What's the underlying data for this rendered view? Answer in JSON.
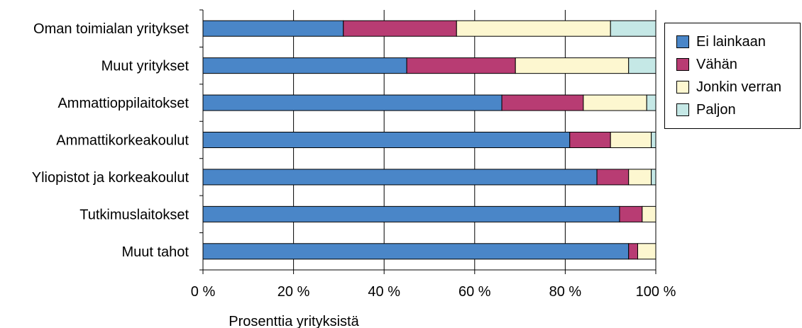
{
  "chart_data": {
    "type": "bar",
    "orientation": "horizontal",
    "stacked": true,
    "title": "",
    "xlabel": "Prosenttia yrityksistä",
    "ylabel": "",
    "xlim": [
      0,
      100
    ],
    "x_ticks": [
      "0 %",
      "20 %",
      "40 %",
      "60 %",
      "80 %",
      "100 %"
    ],
    "grid": "vertical",
    "legend_position": "right-top",
    "categories": [
      "Oman toimialan yritykset",
      "Muut yritykset",
      "Ammattioppilaitokset",
      "Ammattikorkeakoulut",
      "Yliopistot ja korkeakoulut",
      "Tutkimuslaitokset",
      "Muut tahot"
    ],
    "series": [
      {
        "name": "Ei lainkaan",
        "color": "#4a86c8",
        "values": [
          31,
          45,
          66,
          81,
          87,
          92,
          94
        ]
      },
      {
        "name": "Vähän",
        "color": "#b83c73",
        "values": [
          25,
          24,
          18,
          9,
          7,
          5,
          2
        ]
      },
      {
        "name": "Jonkin verran",
        "color": "#fdf7d0",
        "values": [
          34,
          25,
          14,
          9,
          5,
          3,
          4
        ]
      },
      {
        "name": "Paljon",
        "color": "#c5e8e6",
        "values": [
          10,
          6,
          2,
          1,
          1,
          0,
          0
        ]
      }
    ]
  }
}
